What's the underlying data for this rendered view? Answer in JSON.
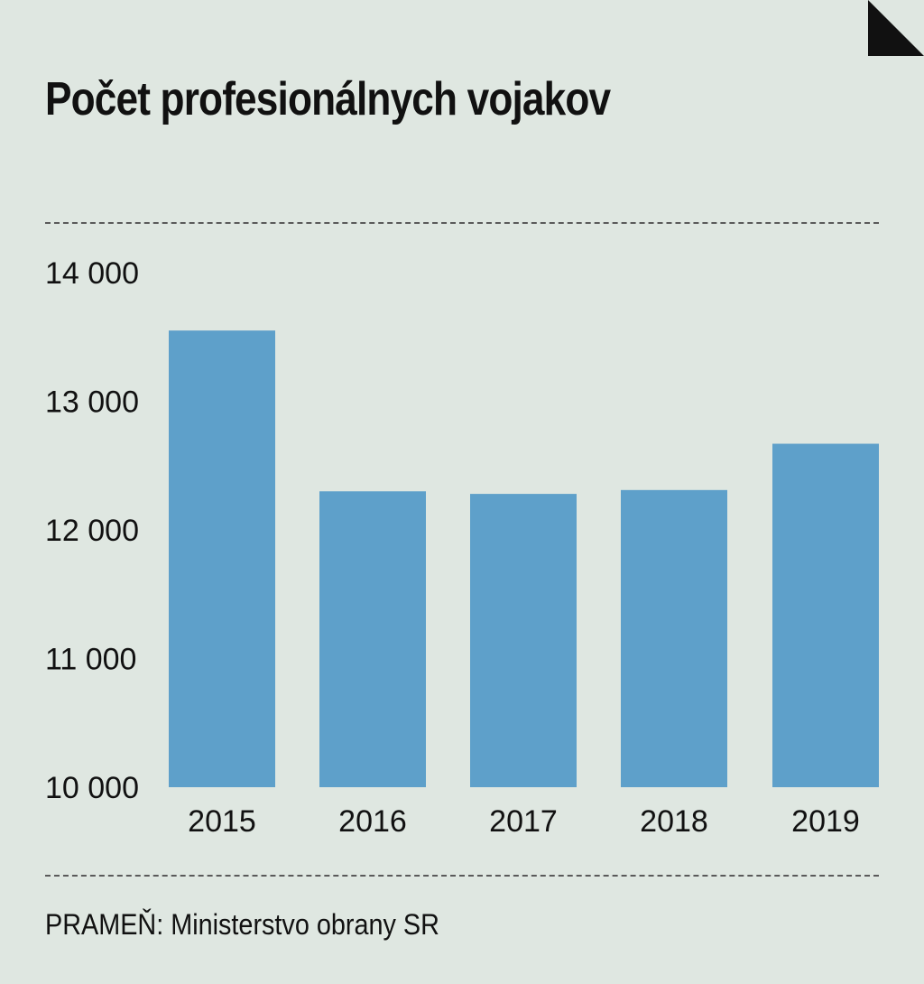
{
  "chart_data": {
    "type": "bar",
    "title": "Počet profesionálnych vojakov",
    "categories": [
      "2015",
      "2016",
      "2017",
      "2018",
      "2019"
    ],
    "values": [
      13550,
      12300,
      12280,
      12310,
      12670
    ],
    "ylim": [
      10000,
      14000
    ],
    "yticks": [
      14000,
      13000,
      12000,
      11000,
      10000
    ],
    "ytick_labels": [
      "14 000",
      "13 000",
      "12 000",
      "11 000",
      "10 000"
    ],
    "xlabel": "",
    "ylabel": "",
    "grid": false,
    "bar_color": "#5ea0ca"
  },
  "source": "PRAMEŇ: Ministerstvo obrany SR",
  "colors": {
    "background": "#dfe7e1",
    "text": "#111111",
    "bar": "#5ea0ca"
  }
}
